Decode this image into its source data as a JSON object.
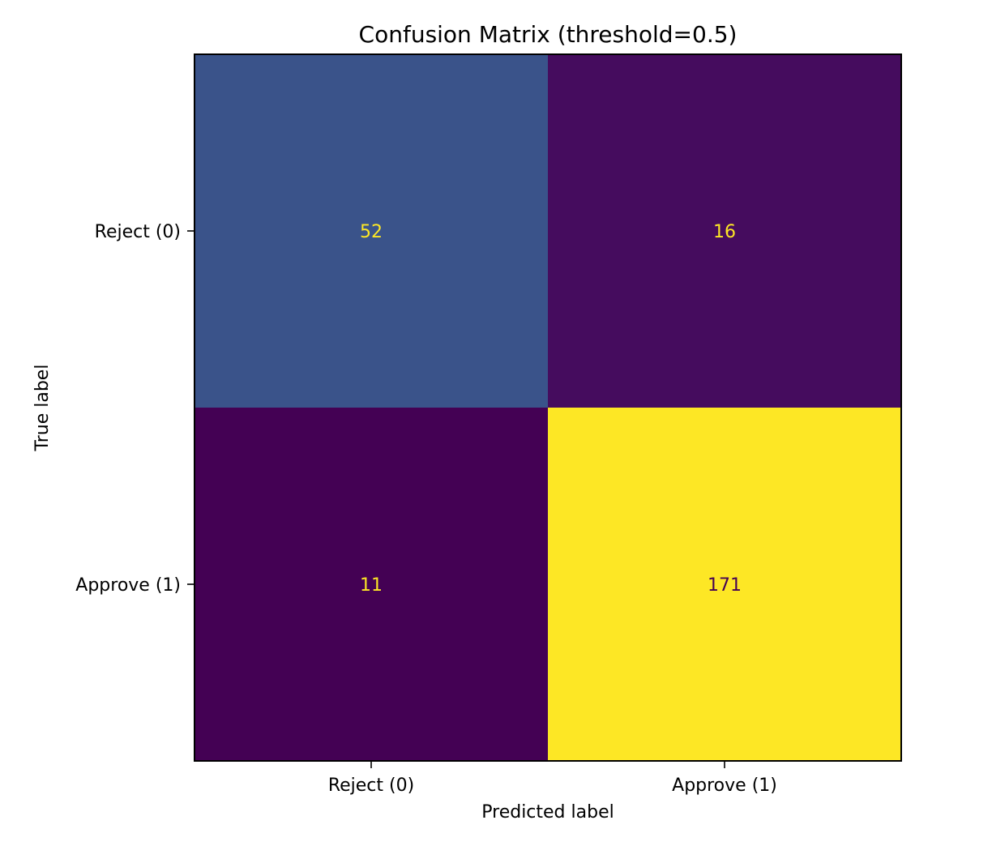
{
  "chart_data": {
    "type": "heatmap",
    "title": "Confusion Matrix (threshold=0.5)",
    "xlabel": "Predicted label",
    "ylabel": "True label",
    "x_categories": [
      "Reject (0)",
      "Approve (1)"
    ],
    "y_categories": [
      "Reject (0)",
      "Approve (1)"
    ],
    "matrix": [
      [
        52,
        16
      ],
      [
        11,
        171
      ]
    ],
    "colormap": "viridis",
    "colorbar": false,
    "value_range": [
      11,
      171
    ],
    "text_color_dark_cells": "#fde725",
    "text_color_light_cells": "#440154"
  }
}
